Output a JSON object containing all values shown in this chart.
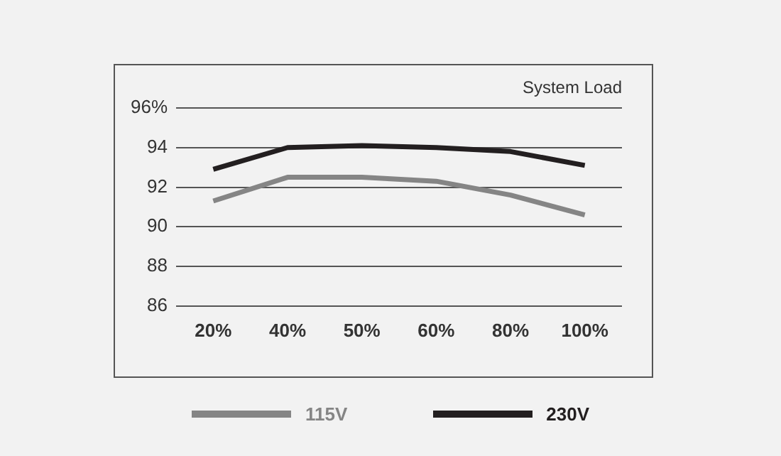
{
  "chart_data": {
    "type": "line",
    "xlabel": "System Load",
    "categories": [
      "20%",
      "40%",
      "50%",
      "60%",
      "80%",
      "100%"
    ],
    "series": [
      {
        "name": "115V",
        "color": "#858585",
        "values": [
          91.3,
          92.5,
          92.5,
          92.3,
          91.6,
          90.6
        ]
      },
      {
        "name": "230V",
        "color": "#231f20",
        "values": [
          92.9,
          94.0,
          94.1,
          94.0,
          93.8,
          93.1
        ]
      }
    ],
    "ylim": [
      86,
      96
    ],
    "yticks": [
      86,
      88,
      90,
      92,
      94,
      {
        "value": 96,
        "label": "96%"
      }
    ],
    "grid": "y",
    "legend": "bottom",
    "marker": "none",
    "line_style": "solid"
  }
}
